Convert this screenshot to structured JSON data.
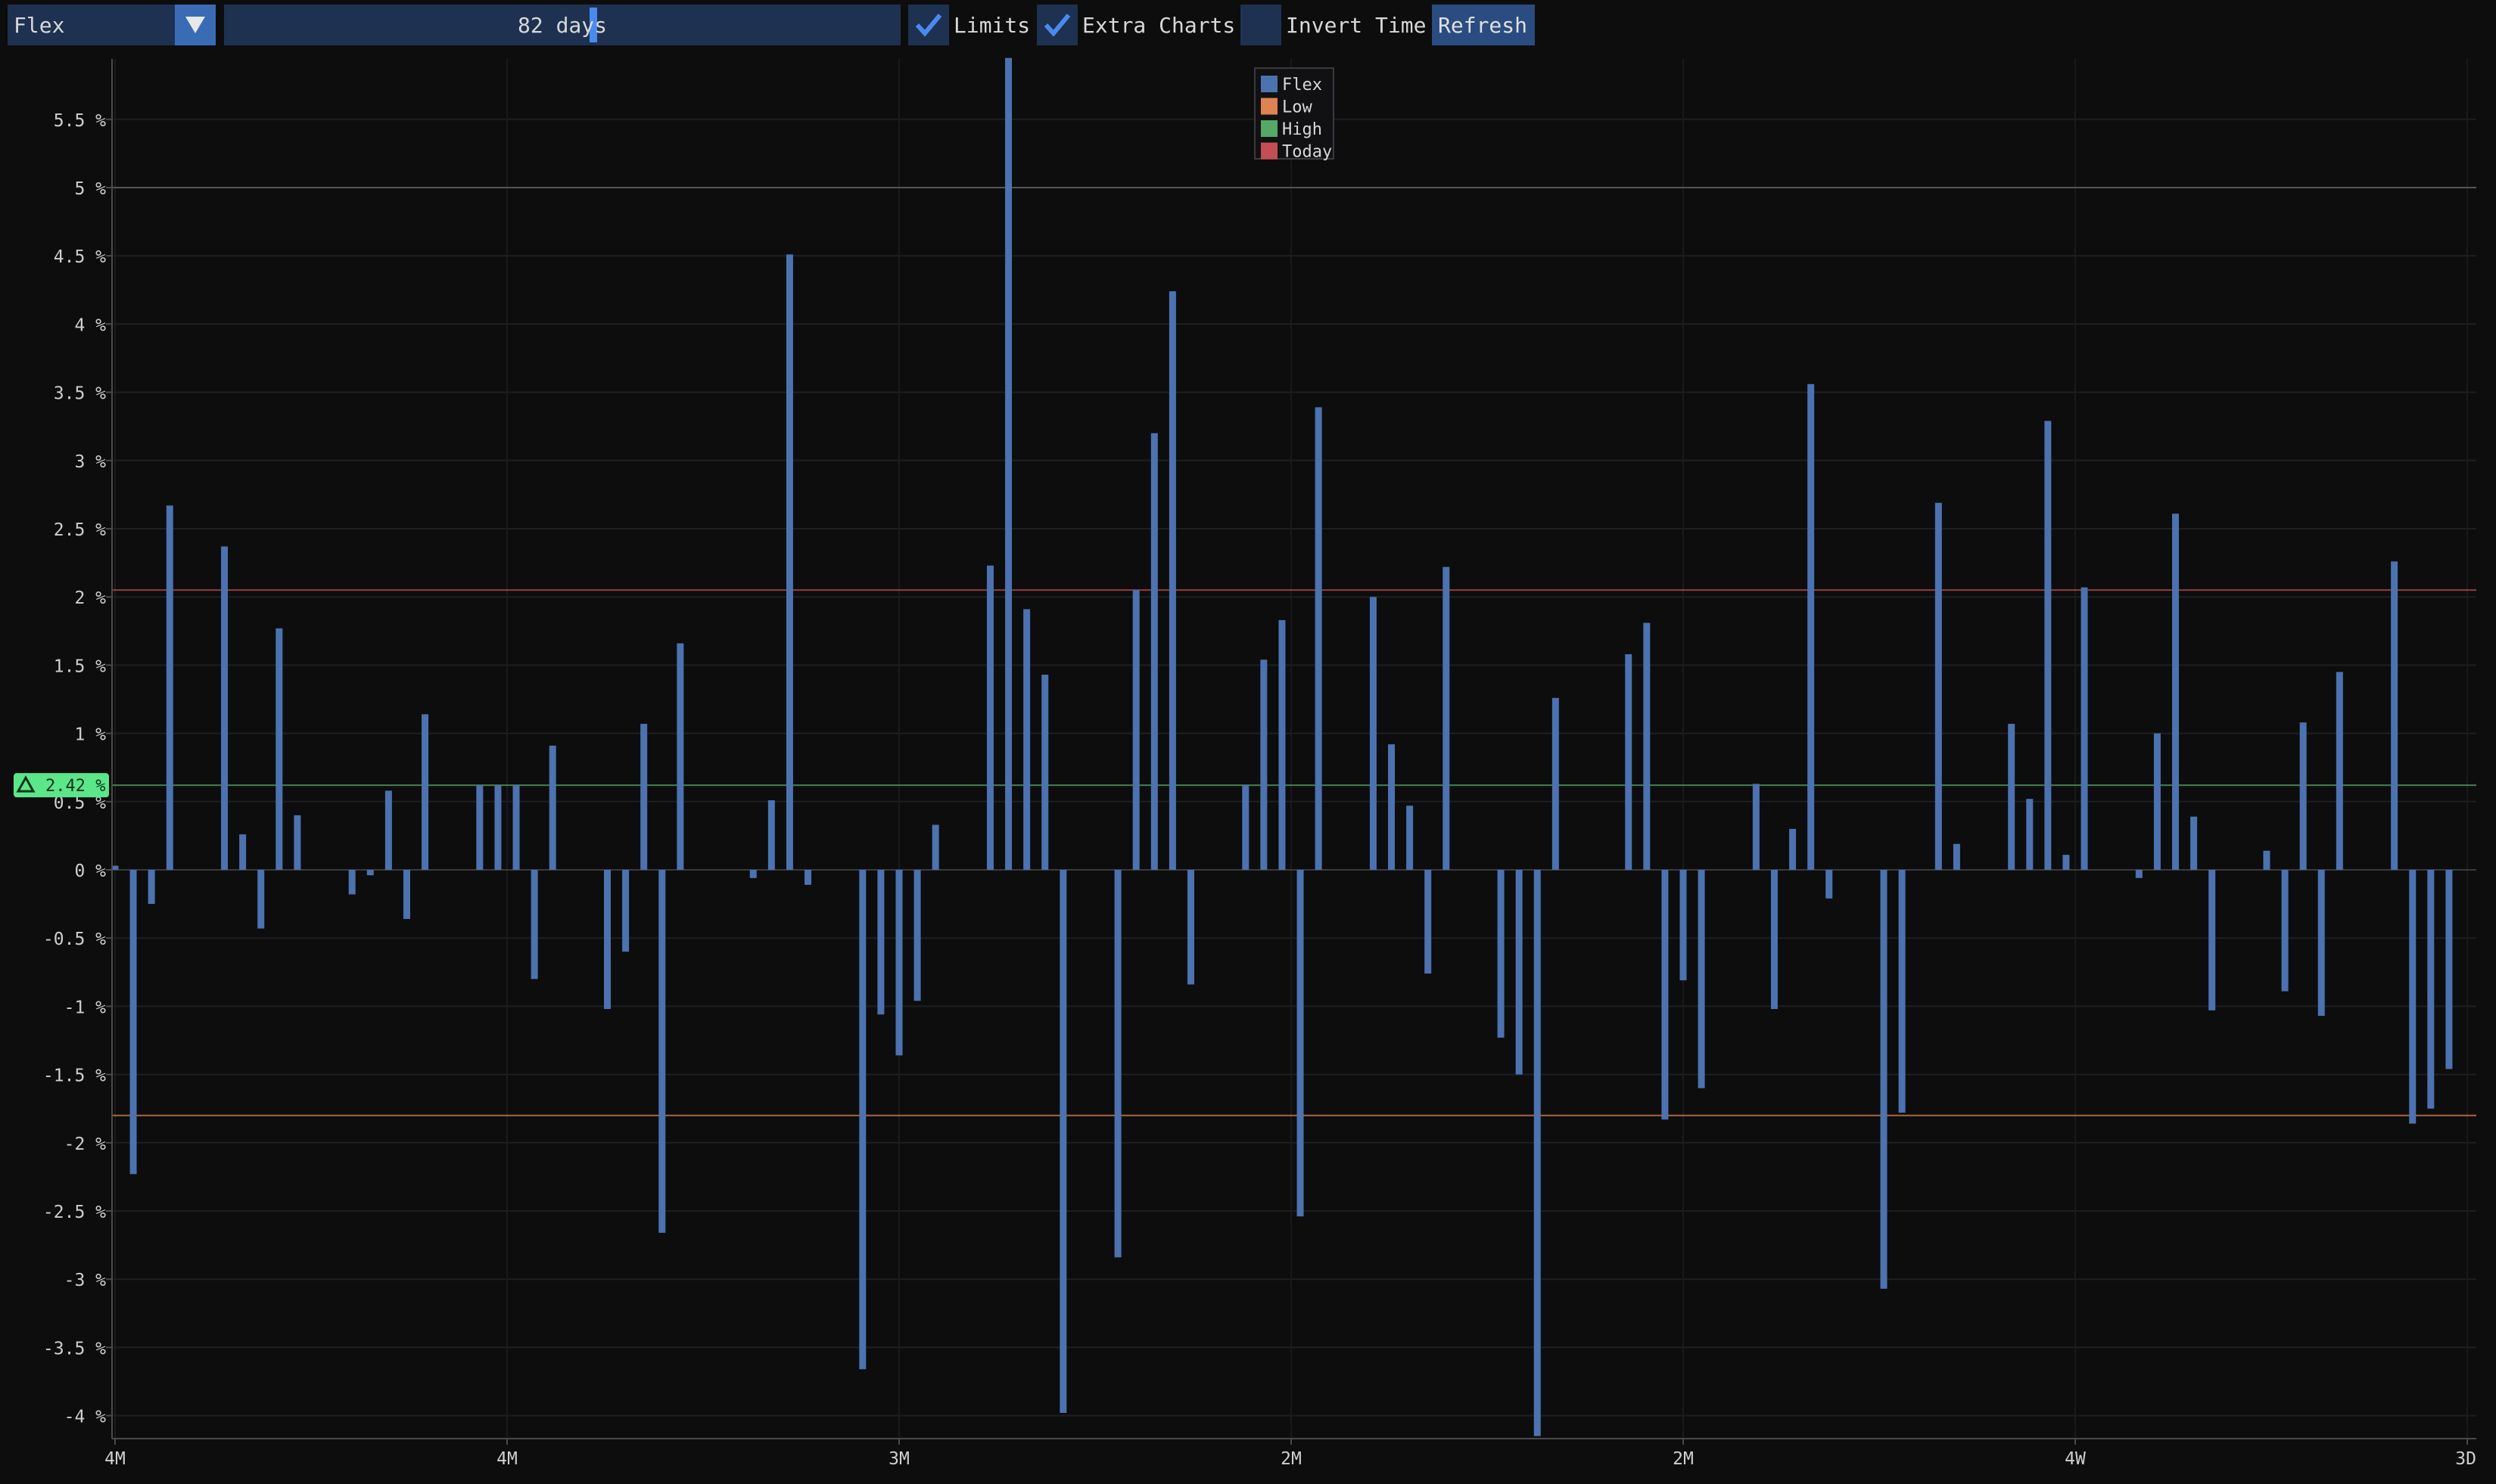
{
  "toolbar": {
    "combo": {
      "value": "Flex",
      "icon": "triangle-down-icon"
    },
    "slider": {
      "label": "82 days",
      "value": 82
    },
    "limits": {
      "label": "Limits",
      "checked": true
    },
    "extra_charts": {
      "label": "Extra Charts",
      "checked": true
    },
    "invert_time": {
      "label": "Invert Time",
      "checked": false
    },
    "refresh_label": "Refresh"
  },
  "colors": {
    "background": "#0d0d0e",
    "frame": "#1e3150",
    "accent": "#4a8af0",
    "bar": "#4c72b0",
    "low": "#dd8452",
    "high": "#55a868",
    "today": "#c44e52"
  },
  "chart_data": {
    "type": "bar",
    "ylabel_suffix": " %",
    "ylim": [
      -4.2,
      6.0
    ],
    "yticks": [
      {
        "value": 5.5,
        "label": "5.5 %"
      },
      {
        "value": 5,
        "label": "5 %"
      },
      {
        "value": 4.5,
        "label": "4.5 %"
      },
      {
        "value": 4,
        "label": "4 %"
      },
      {
        "value": 3.5,
        "label": "3.5 %"
      },
      {
        "value": 3,
        "label": "3 %"
      },
      {
        "value": 2.5,
        "label": "2.5 %"
      },
      {
        "value": 2,
        "label": "2 %"
      },
      {
        "value": 1.5,
        "label": "1.5 %"
      },
      {
        "value": 1,
        "label": "1 %"
      },
      {
        "value": 0.5,
        "label": "0.5 %"
      },
      {
        "value": 0,
        "label": "0 %"
      },
      {
        "value": -0.5,
        "label": "-0.5 %"
      },
      {
        "value": -1,
        "label": "-1 %"
      },
      {
        "value": -1.5,
        "label": "-1.5 %"
      },
      {
        "value": -2,
        "label": "-2 %"
      },
      {
        "value": -2.5,
        "label": "-2.5 %"
      },
      {
        "value": -3,
        "label": "-3 %"
      },
      {
        "value": -3.5,
        "label": "-3.5 %"
      },
      {
        "value": -4,
        "label": "-4 %"
      }
    ],
    "xlim": [
      0,
      129
    ],
    "xticks": [
      {
        "value": 0,
        "label": "4M"
      },
      {
        "value": 21.5,
        "label": "4M"
      },
      {
        "value": 43,
        "label": "3M"
      },
      {
        "value": 64.5,
        "label": "2M"
      },
      {
        "value": 86,
        "label": "2M"
      },
      {
        "value": 107.5,
        "label": "4W"
      },
      {
        "value": 129,
        "label": "3D"
      }
    ],
    "legend": {
      "placement": "top-center",
      "entries": [
        {
          "name": "Flex",
          "color": "#4c72b0"
        },
        {
          "name": "Low",
          "color": "#dd8452"
        },
        {
          "name": "High",
          "color": "#55a868"
        },
        {
          "name": "Today",
          "color": "#c44e52"
        }
      ]
    },
    "reference_lines": [
      {
        "name": "Low",
        "value": -1.8,
        "color": "#dd8452"
      },
      {
        "name": "High",
        "value": 0.62,
        "color": "#55a868"
      },
      {
        "name": "Today",
        "value": 2.05,
        "color": "#c44e52"
      }
    ],
    "gray_line": 5.0,
    "marker": {
      "value": 0.62,
      "label": "2.42 %",
      "icon": "triangle-up-icon"
    },
    "series": [
      {
        "name": "Flex",
        "values": [
          {
            "x": 0,
            "y": 0.03
          },
          {
            "x": 1,
            "y": -2.23
          },
          {
            "x": 2,
            "y": -0.25
          },
          {
            "x": 3,
            "y": 2.67
          },
          {
            "x": 6,
            "y": 2.37
          },
          {
            "x": 7,
            "y": 0.26
          },
          {
            "x": 8,
            "y": -0.43
          },
          {
            "x": 9,
            "y": 1.77
          },
          {
            "x": 10,
            "y": 0.4
          },
          {
            "x": 13,
            "y": -0.18
          },
          {
            "x": 14,
            "y": -0.04
          },
          {
            "x": 15,
            "y": 0.58
          },
          {
            "x": 16,
            "y": -0.36
          },
          {
            "x": 17,
            "y": 1.14
          },
          {
            "x": 20,
            "y": 0.62
          },
          {
            "x": 21,
            "y": 0.62
          },
          {
            "x": 22,
            "y": 0.62
          },
          {
            "x": 23,
            "y": -0.8
          },
          {
            "x": 24,
            "y": 0.91
          },
          {
            "x": 27,
            "y": -1.02
          },
          {
            "x": 28,
            "y": -0.6
          },
          {
            "x": 29,
            "y": 1.07
          },
          {
            "x": 30,
            "y": -2.66
          },
          {
            "x": 31,
            "y": 1.66
          },
          {
            "x": 35,
            "y": -0.06
          },
          {
            "x": 36,
            "y": 0.51
          },
          {
            "x": 37,
            "y": 4.51
          },
          {
            "x": 38,
            "y": -0.11
          },
          {
            "x": 41,
            "y": -3.66
          },
          {
            "x": 42,
            "y": -1.06
          },
          {
            "x": 43,
            "y": -1.36
          },
          {
            "x": 44,
            "y": -0.96
          },
          {
            "x": 45,
            "y": 0.33
          },
          {
            "x": 48,
            "y": 2.23
          },
          {
            "x": 49,
            "y": 5.95
          },
          {
            "x": 50,
            "y": 1.91
          },
          {
            "x": 51,
            "y": 1.43
          },
          {
            "x": 52,
            "y": -3.98
          },
          {
            "x": 55,
            "y": -2.84
          },
          {
            "x": 56,
            "y": 2.05
          },
          {
            "x": 57,
            "y": 3.2
          },
          {
            "x": 58,
            "y": 4.24
          },
          {
            "x": 59,
            "y": -0.84
          },
          {
            "x": 62,
            "y": 0.62
          },
          {
            "x": 63,
            "y": 1.54
          },
          {
            "x": 64,
            "y": 1.83
          },
          {
            "x": 65,
            "y": -2.54
          },
          {
            "x": 66,
            "y": 3.39
          },
          {
            "x": 69,
            "y": 2.0
          },
          {
            "x": 70,
            "y": 0.92
          },
          {
            "x": 71,
            "y": 0.47
          },
          {
            "x": 72,
            "y": -0.76
          },
          {
            "x": 73,
            "y": 2.22
          },
          {
            "x": 76,
            "y": -1.23
          },
          {
            "x": 77,
            "y": -1.5
          },
          {
            "x": 78,
            "y": -4.15
          },
          {
            "x": 79,
            "y": 1.26
          },
          {
            "x": 83,
            "y": 1.58
          },
          {
            "x": 84,
            "y": 1.81
          },
          {
            "x": 85,
            "y": -1.83
          },
          {
            "x": 86,
            "y": -0.81
          },
          {
            "x": 87,
            "y": -1.6
          },
          {
            "x": 90,
            "y": 0.63
          },
          {
            "x": 91,
            "y": -1.02
          },
          {
            "x": 92,
            "y": 0.3
          },
          {
            "x": 93,
            "y": 3.56
          },
          {
            "x": 94,
            "y": -0.21
          },
          {
            "x": 97,
            "y": -3.07
          },
          {
            "x": 98,
            "y": -1.78
          },
          {
            "x": 100,
            "y": 2.69
          },
          {
            "x": 101,
            "y": 0.19
          },
          {
            "x": 104,
            "y": 1.07
          },
          {
            "x": 105,
            "y": 0.52
          },
          {
            "x": 106,
            "y": 3.29
          },
          {
            "x": 107,
            "y": 0.11
          },
          {
            "x": 108,
            "y": 2.07
          },
          {
            "x": 111,
            "y": -0.06
          },
          {
            "x": 112,
            "y": 1.0
          },
          {
            "x": 113,
            "y": 2.61
          },
          {
            "x": 114,
            "y": 0.39
          },
          {
            "x": 115,
            "y": -1.03
          },
          {
            "x": 118,
            "y": 0.14
          },
          {
            "x": 119,
            "y": -0.89
          },
          {
            "x": 120,
            "y": 1.08
          },
          {
            "x": 121,
            "y": -1.07
          },
          {
            "x": 122,
            "y": 1.45
          },
          {
            "x": 125,
            "y": 2.26
          },
          {
            "x": 126,
            "y": -1.86
          },
          {
            "x": 127,
            "y": -1.75
          },
          {
            "x": 128,
            "y": -1.46
          }
        ]
      }
    ]
  }
}
